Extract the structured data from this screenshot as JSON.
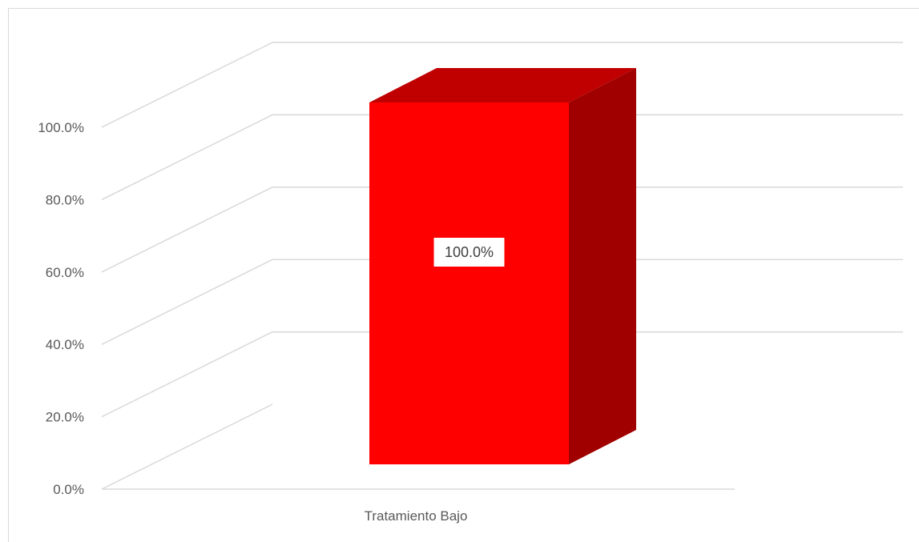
{
  "chart_data": {
    "type": "bar",
    "style": "3d-column",
    "categories": [
      "Tratamiento Bajo"
    ],
    "series": [
      {
        "values": [
          100.0
        ],
        "color": "#ff0000"
      }
    ],
    "value_format": "percent-1dp",
    "data_labels": [
      "100.0%"
    ],
    "y_ticks": [
      "0.0%",
      "20.0%",
      "40.0%",
      "60.0%",
      "80.0%",
      "100.0%"
    ],
    "ylim": [
      0,
      100
    ],
    "grid": true,
    "legend": "none",
    "colors": {
      "bar_front": "#ff0000",
      "bar_top": "#c00000",
      "bar_side": "#a00000",
      "grid": "#d9d9d9",
      "text": "#595959"
    }
  }
}
